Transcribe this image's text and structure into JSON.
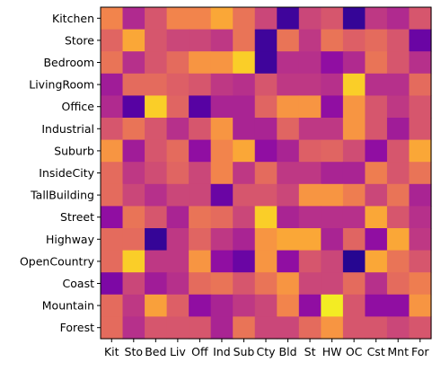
{
  "chart_data": {
    "type": "heatmap",
    "title": "",
    "xlabel": "",
    "ylabel": "",
    "colormap": "plasma",
    "value_range": [
      0,
      1
    ],
    "grid": false,
    "legend": "none",
    "row_labels": [
      "Kitchen",
      "Store",
      "Bedroom",
      "LivingRoom",
      "Office",
      "Industrial",
      "Suburb",
      "InsideCity",
      "TallBuilding",
      "Street",
      "Highway",
      "OpenCountry",
      "Coast",
      "Mountain",
      "Forest"
    ],
    "col_labels": [
      "Kit",
      "Sto",
      "Bed",
      "Liv",
      "Off",
      "Ind",
      "Sub",
      "Cty",
      "Bld",
      "St",
      "HW",
      "OC",
      "Cst",
      "Mnt",
      "For"
    ],
    "values": [
      [
        0.7,
        0.4,
        0.55,
        0.7,
        0.7,
        0.8,
        0.65,
        0.5,
        0.1,
        0.5,
        0.55,
        0.08,
        0.45,
        0.4,
        0.55
      ],
      [
        0.6,
        0.8,
        0.55,
        0.5,
        0.5,
        0.45,
        0.65,
        0.1,
        0.65,
        0.45,
        0.65,
        0.58,
        0.62,
        0.55,
        0.2
      ],
      [
        0.65,
        0.42,
        0.55,
        0.62,
        0.75,
        0.75,
        0.9,
        0.1,
        0.42,
        0.42,
        0.3,
        0.4,
        0.65,
        0.55,
        0.42
      ],
      [
        0.35,
        0.62,
        0.62,
        0.58,
        0.55,
        0.45,
        0.42,
        0.55,
        0.45,
        0.45,
        0.42,
        0.9,
        0.42,
        0.42,
        0.62
      ],
      [
        0.4,
        0.15,
        0.9,
        0.6,
        0.15,
        0.38,
        0.38,
        0.6,
        0.75,
        0.75,
        0.3,
        0.75,
        0.55,
        0.45,
        0.55
      ],
      [
        0.55,
        0.65,
        0.55,
        0.42,
        0.55,
        0.75,
        0.38,
        0.38,
        0.6,
        0.45,
        0.45,
        0.75,
        0.55,
        0.35,
        0.55
      ],
      [
        0.75,
        0.35,
        0.55,
        0.62,
        0.3,
        0.7,
        0.8,
        0.3,
        0.38,
        0.58,
        0.6,
        0.52,
        0.3,
        0.55,
        0.8
      ],
      [
        0.62,
        0.45,
        0.52,
        0.6,
        0.5,
        0.7,
        0.45,
        0.62,
        0.45,
        0.45,
        0.38,
        0.38,
        0.68,
        0.55,
        0.65
      ],
      [
        0.62,
        0.5,
        0.42,
        0.5,
        0.5,
        0.2,
        0.55,
        0.55,
        0.5,
        0.75,
        0.75,
        0.68,
        0.5,
        0.65,
        0.38
      ],
      [
        0.3,
        0.65,
        0.55,
        0.38,
        0.65,
        0.62,
        0.5,
        0.9,
        0.38,
        0.42,
        0.42,
        0.42,
        0.8,
        0.55,
        0.42
      ],
      [
        0.62,
        0.62,
        0.08,
        0.45,
        0.6,
        0.45,
        0.38,
        0.75,
        0.8,
        0.8,
        0.38,
        0.6,
        0.3,
        0.8,
        0.45
      ],
      [
        0.62,
        0.9,
        0.45,
        0.45,
        0.75,
        0.3,
        0.2,
        0.75,
        0.3,
        0.55,
        0.5,
        0.05,
        0.8,
        0.65,
        0.55
      ],
      [
        0.25,
        0.5,
        0.35,
        0.42,
        0.62,
        0.65,
        0.55,
        0.65,
        0.75,
        0.5,
        0.5,
        0.62,
        0.42,
        0.62,
        0.68
      ],
      [
        0.62,
        0.45,
        0.78,
        0.58,
        0.3,
        0.38,
        0.45,
        0.5,
        0.7,
        0.3,
        0.97,
        0.55,
        0.3,
        0.3,
        0.75
      ],
      [
        0.62,
        0.42,
        0.55,
        0.55,
        0.55,
        0.38,
        0.65,
        0.5,
        0.5,
        0.62,
        0.75,
        0.55,
        0.55,
        0.5,
        0.55
      ]
    ]
  }
}
